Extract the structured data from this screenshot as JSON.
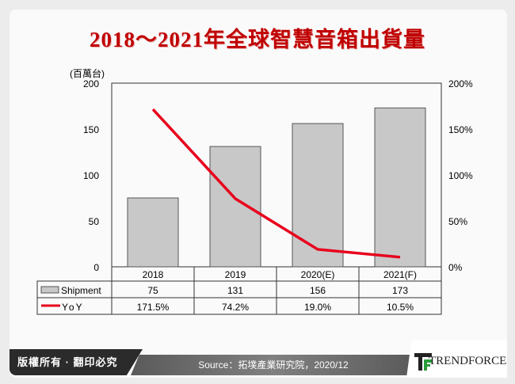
{
  "chart_data": {
    "type": "bar+line",
    "title": "2018～2021年全球智慧音箱出貨量",
    "y_left_unit": "(百萬台)",
    "categories": [
      "2018",
      "2019",
      "2020(E)",
      "2021(F)"
    ],
    "y_left_ticks": [
      "0",
      "50",
      "100",
      "150",
      "200"
    ],
    "y_right_ticks": [
      "0%",
      "50%",
      "100%",
      "150%",
      "200%"
    ],
    "ylim_left": [
      0,
      200
    ],
    "ylim_right": [
      0,
      200
    ],
    "series": [
      {
        "name": "Shipment",
        "type": "bar",
        "values": [
          75,
          131,
          156,
          173
        ],
        "labels": [
          "75",
          "131",
          "156",
          "173"
        ],
        "color": "#c8c8c8"
      },
      {
        "name": "YoY",
        "type": "line",
        "values": [
          171.5,
          74.2,
          19.0,
          10.5
        ],
        "labels": [
          "171.5%",
          "74.2%",
          "19.0%",
          "10.5%"
        ],
        "color": "#e8001c"
      }
    ]
  },
  "footer": {
    "copyright": "版權所有 · 翻印必究",
    "source": "Source：拓墣產業研究院，2020/12",
    "logo": "TRENDFORCE"
  }
}
